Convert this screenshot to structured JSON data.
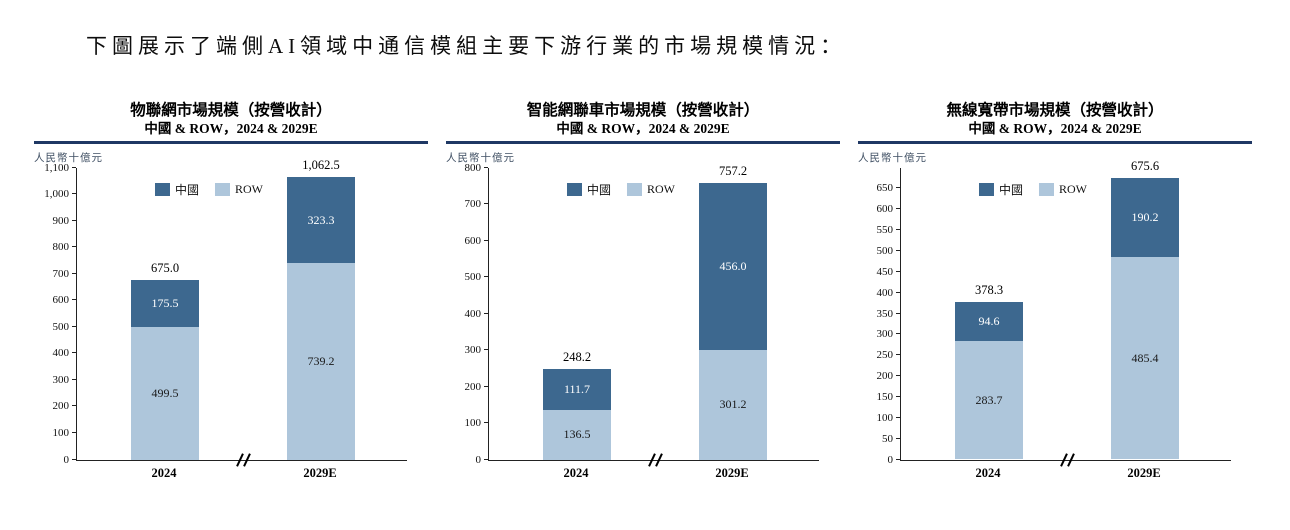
{
  "heading": "下圖展示了端側AI領域中通信模組主要下游行業的市場規模情況：",
  "legend": {
    "china": "中國",
    "row": "ROW"
  },
  "colors": {
    "china": "#3d688f",
    "row": "#aec6db",
    "title_rule": "#1f3864",
    "axis": "#222222",
    "label_on_dark": "#ffffff",
    "label_on_light": "#1a1a1a"
  },
  "chart_data": [
    {
      "id": "chart-iot-market",
      "type": "bar",
      "stacked": true,
      "title": "物聯網市場規模（按營收計）",
      "subtitle": "中國 & ROW，2024 & 2029E",
      "ylabel": "人民幣十億元",
      "categories": [
        "2024",
        "2029E"
      ],
      "series": [
        {
          "name": "ROW",
          "values": [
            499.5,
            739.2
          ],
          "labels": [
            "499.5",
            "739.2"
          ]
        },
        {
          "name": "中國",
          "values": [
            175.5,
            323.3
          ],
          "labels": [
            "175.5",
            "323.3"
          ]
        }
      ],
      "totals": [
        675.0,
        1062.5
      ],
      "total_labels": [
        "675.0",
        "1,062.5"
      ],
      "ylim": [
        0,
        1100
      ],
      "ytick_max": 1100,
      "ytick_step": 100,
      "yscale_max": 1100,
      "legend_position": "top-center",
      "grid": false
    },
    {
      "id": "chart-smart-connected-vehicle-market",
      "type": "bar",
      "stacked": true,
      "title": "智能網聯車市場規模（按營收計）",
      "subtitle": "中國 & ROW，2024 & 2029E",
      "ylabel": "人民幣十億元",
      "categories": [
        "2024",
        "2029E"
      ],
      "series": [
        {
          "name": "ROW",
          "values": [
            136.5,
            301.2
          ],
          "labels": [
            "136.5",
            "301.2"
          ]
        },
        {
          "name": "中國",
          "values": [
            111.7,
            456.0
          ],
          "labels": [
            "111.7",
            "456.0"
          ]
        }
      ],
      "totals": [
        248.2,
        757.2
      ],
      "total_labels": [
        "248.2",
        "757.2"
      ],
      "ylim": [
        0,
        800
      ],
      "ytick_max": 800,
      "ytick_step": 100,
      "yscale_max": 800,
      "legend_position": "top-center",
      "grid": false
    },
    {
      "id": "chart-wireless-broadband-market",
      "type": "bar",
      "stacked": true,
      "title": "無線寬帶市場規模（按營收計）",
      "subtitle": "中國 & ROW，2024 & 2029E",
      "ylabel": "人民幣十億元",
      "categories": [
        "2024",
        "2029E"
      ],
      "series": [
        {
          "name": "ROW",
          "values": [
            283.7,
            485.4
          ],
          "labels": [
            "283.7",
            "485.4"
          ]
        },
        {
          "name": "中國",
          "values": [
            94.6,
            190.2
          ],
          "labels": [
            "94.6",
            "190.2"
          ]
        }
      ],
      "totals": [
        378.3,
        675.6
      ],
      "total_labels": [
        "378.3",
        "675.6"
      ],
      "ylim": [
        0,
        650
      ],
      "ytick_max": 650,
      "ytick_step": 50,
      "yscale_max": 700,
      "legend_position": "top-center",
      "grid": false
    }
  ]
}
